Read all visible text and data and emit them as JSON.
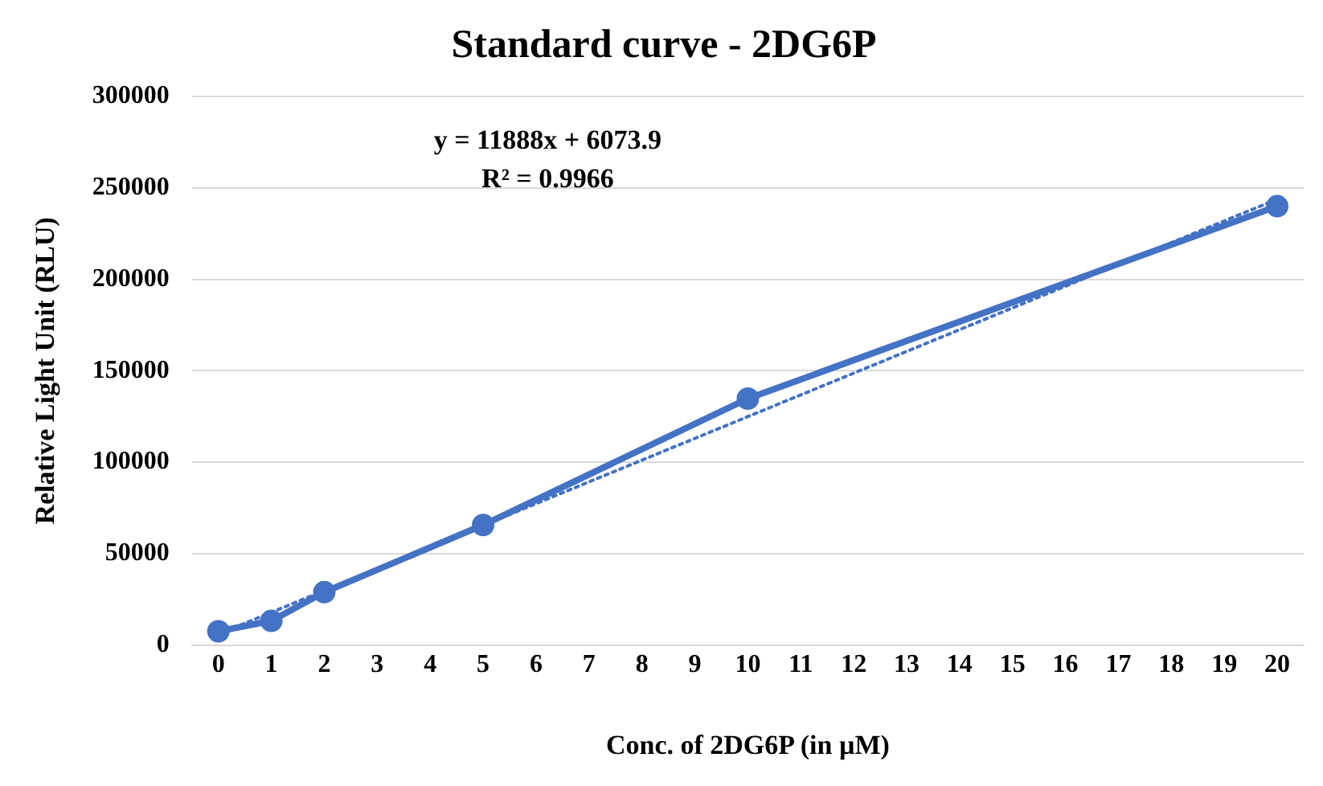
{
  "chart_data": {
    "type": "line",
    "title": "Standard curve - 2DG6P",
    "xlabel": "Conc. of 2DG6P (in µM)",
    "ylabel": "Relative Light Unit (RLU)",
    "x": [
      0,
      1,
      2,
      5,
      10,
      20
    ],
    "series": [
      {
        "color": "#4472c4",
        "values": [
          7600,
          13300,
          29000,
          65700,
          134800,
          240000
        ],
        "marker": "circle",
        "line_style": "solid"
      },
      {
        "type": "line",
        "color": "#4472c4",
        "x": [
          0,
          20
        ],
        "values": [
          6073.9,
          243833.9
        ],
        "marker": "none",
        "line_style": "dotted"
      }
    ],
    "annotations": [
      "y = 11888x + 6073.9",
      "R² = 0.9966"
    ],
    "xlim": [
      -0.5,
      20.5
    ],
    "xticks": [
      0,
      1,
      2,
      3,
      4,
      5,
      6,
      7,
      8,
      9,
      10,
      11,
      12,
      13,
      14,
      15,
      16,
      17,
      18,
      19,
      20
    ],
    "ylim": [
      0,
      300000
    ],
    "yticks": [
      0,
      50000,
      100000,
      150000,
      200000,
      250000,
      300000
    ],
    "grid": "y",
    "legend": false
  }
}
